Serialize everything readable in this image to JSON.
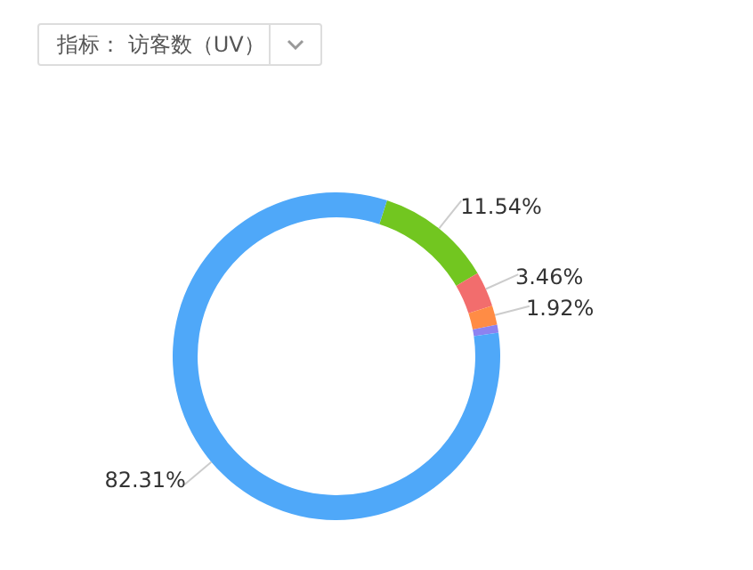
{
  "chart_data": {
    "type": "donut",
    "title": "指标： 访客数（UV）",
    "categories": [
      null,
      null,
      null,
      null,
      null
    ],
    "values": [
      11.54,
      3.46,
      1.92,
      0.77,
      82.31
    ],
    "colors": [
      "#72c620",
      "#f26d6d",
      "#ff8c45",
      "#8d82f0",
      "#4fa8f9"
    ],
    "value_labels": [
      "11.54%",
      "3.46%",
      "1.92%",
      null,
      "82.31%"
    ]
  }
}
